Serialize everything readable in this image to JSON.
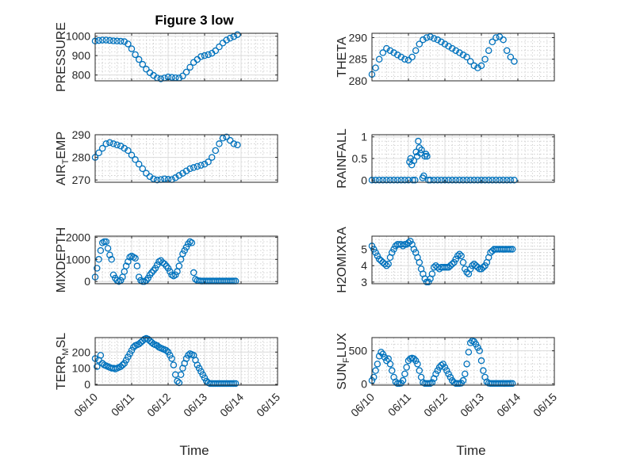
{
  "figure": {
    "title": "Figure 3 low",
    "xlabel": "Time",
    "x_tick_labels": [
      "06/10",
      "06/11",
      "06/12",
      "06/13",
      "06/14",
      "06/15"
    ],
    "marker_color": "#0072BD",
    "grid": "on (major + minor)"
  },
  "chart_data": [
    {
      "type": "scatter",
      "panel": "PRESSURE",
      "ylabel": "PRESSURE",
      "x_range": [
        0,
        5
      ],
      "ylim": [
        770,
        1015
      ],
      "yticks": [
        800,
        900,
        1000
      ],
      "x": [
        0,
        0.1,
        0.2,
        0.3,
        0.4,
        0.5,
        0.6,
        0.7,
        0.8,
        0.9,
        1,
        1.1,
        1.2,
        1.3,
        1.4,
        1.5,
        1.6,
        1.7,
        1.8,
        1.9,
        2,
        2.1,
        2.2,
        2.3,
        2.4,
        2.5,
        2.6,
        2.7,
        2.8,
        2.9,
        3,
        3.1,
        3.2,
        3.3,
        3.4,
        3.5,
        3.6,
        3.7,
        3.8,
        3.9
      ],
      "y": [
        975,
        978,
        980,
        980,
        978,
        976,
        975,
        974,
        972,
        960,
        935,
        905,
        880,
        855,
        830,
        812,
        798,
        785,
        780,
        785,
        790,
        788,
        786,
        785,
        795,
        815,
        840,
        865,
        880,
        895,
        900,
        905,
        912,
        925,
        945,
        965,
        980,
        990,
        998,
        1008
      ]
    },
    {
      "type": "scatter",
      "panel": "THETA",
      "ylabel": "THETA",
      "x_range": [
        0,
        5
      ],
      "ylim": [
        280,
        291
      ],
      "yticks": [
        280,
        285,
        290
      ],
      "x": [
        0,
        0.1,
        0.2,
        0.3,
        0.4,
        0.5,
        0.6,
        0.7,
        0.8,
        0.9,
        1,
        1.1,
        1.2,
        1.3,
        1.4,
        1.5,
        1.6,
        1.7,
        1.8,
        1.9,
        2,
        2.1,
        2.2,
        2.3,
        2.4,
        2.5,
        2.6,
        2.7,
        2.8,
        2.9,
        3,
        3.1,
        3.2,
        3.3,
        3.4,
        3.5,
        3.6,
        3.7,
        3.8,
        3.9
      ],
      "y": [
        281.5,
        283,
        285,
        286.5,
        287.5,
        287,
        286.5,
        286,
        285.5,
        285,
        284.8,
        285.5,
        287,
        288.5,
        289.5,
        290,
        290.2,
        289.8,
        289.5,
        289,
        288.5,
        288,
        287.5,
        287,
        286.5,
        286,
        285.5,
        284.5,
        283.5,
        283,
        283.5,
        285,
        287,
        289,
        290,
        290.2,
        289.5,
        287,
        285.5,
        284.5
      ]
    },
    {
      "type": "scatter",
      "panel": "AIR_TEMP",
      "ylabel": "AIR",
      "ylabel_subscript": "T",
      "ylabel_rest": "EMP",
      "x_range": [
        0,
        5
      ],
      "ylim": [
        269,
        290
      ],
      "yticks": [
        270,
        280,
        290
      ],
      "x": [
        0,
        0.1,
        0.2,
        0.3,
        0.4,
        0.5,
        0.6,
        0.7,
        0.8,
        0.9,
        1,
        1.1,
        1.2,
        1.3,
        1.4,
        1.5,
        1.6,
        1.7,
        1.8,
        1.9,
        2,
        2.1,
        2.2,
        2.3,
        2.4,
        2.5,
        2.6,
        2.7,
        2.8,
        2.9,
        3,
        3.1,
        3.2,
        3.3,
        3.4,
        3.5,
        3.6,
        3.7,
        3.8,
        3.9
      ],
      "y": [
        280,
        282,
        284,
        286,
        286.5,
        286,
        285.5,
        285,
        284,
        283,
        281,
        279,
        277,
        275,
        273,
        271.5,
        270.5,
        270,
        270.2,
        270.5,
        270.3,
        270.2,
        271,
        272,
        273,
        274,
        275,
        275.5,
        276,
        276.5,
        277,
        278,
        280,
        283,
        286,
        288.5,
        289,
        287.5,
        286,
        285.5
      ]
    },
    {
      "type": "scatter",
      "panel": "RAINFALL",
      "ylabel": "RAINFALL",
      "x_range": [
        0,
        5
      ],
      "ylim": [
        -0.05,
        1.05
      ],
      "yticks": [
        0,
        0.5,
        1
      ],
      "x": [
        0,
        0.1,
        0.2,
        0.3,
        0.4,
        0.5,
        0.6,
        0.7,
        0.8,
        0.9,
        1,
        1.03,
        1.06,
        1.09,
        1.12,
        1.15,
        1.18,
        1.21,
        1.24,
        1.27,
        1.3,
        1.33,
        1.36,
        1.39,
        1.42,
        1.45,
        1.48,
        1.51,
        1.55,
        1.6,
        1.7,
        1.8,
        1.9,
        2,
        2.1,
        2.2,
        2.3,
        2.4,
        2.5,
        2.6,
        2.7,
        2.8,
        2.9,
        3,
        3.1,
        3.2,
        3.3,
        3.4,
        3.5,
        3.6,
        3.7,
        3.8,
        3.9
      ],
      "y": [
        0,
        0,
        0,
        0,
        0,
        0,
        0,
        0,
        0,
        0,
        0,
        0.42,
        0.5,
        0.35,
        0,
        0.45,
        0,
        0.65,
        0.55,
        0.9,
        0.75,
        0.62,
        0.7,
        0.05,
        0.1,
        0.55,
        0.6,
        0.55,
        0,
        0,
        0,
        0,
        0,
        0,
        0,
        0,
        0,
        0,
        0,
        0,
        0,
        0,
        0,
        0,
        0,
        0,
        0,
        0,
        0,
        0,
        0,
        0,
        0
      ]
    },
    {
      "type": "scatter",
      "panel": "MIXDEPTH",
      "ylabel": "MIXDEPTH",
      "x_range": [
        0,
        5
      ],
      "ylim": [
        -100,
        2050
      ],
      "yticks": [
        0,
        1000,
        2000
      ],
      "x": [
        0,
        0.05,
        0.1,
        0.15,
        0.2,
        0.25,
        0.3,
        0.35,
        0.4,
        0.45,
        0.5,
        0.55,
        0.6,
        0.65,
        0.7,
        0.75,
        0.8,
        0.85,
        0.9,
        0.95,
        1,
        1.05,
        1.1,
        1.15,
        1.2,
        1.25,
        1.3,
        1.35,
        1.4,
        1.45,
        1.5,
        1.55,
        1.6,
        1.65,
        1.7,
        1.75,
        1.8,
        1.85,
        1.9,
        1.95,
        2,
        2.05,
        2.1,
        2.15,
        2.2,
        2.25,
        2.3,
        2.35,
        2.4,
        2.45,
        2.5,
        2.55,
        2.6,
        2.65,
        2.7,
        2.75,
        2.8,
        2.85,
        2.9,
        2.95,
        3,
        3.05,
        3.1,
        3.15,
        3.2,
        3.25,
        3.3,
        3.35,
        3.4,
        3.45,
        3.5,
        3.55,
        3.6,
        3.65,
        3.7,
        3.75,
        3.8,
        3.85
      ],
      "y": [
        200,
        600,
        1000,
        1400,
        1750,
        1800,
        1800,
        1500,
        1200,
        1000,
        300,
        150,
        50,
        0,
        50,
        200,
        450,
        700,
        900,
        1100,
        1150,
        1100,
        1050,
        700,
        200,
        50,
        0,
        0,
        50,
        150,
        300,
        400,
        500,
        600,
        750,
        900,
        950,
        850,
        800,
        700,
        600,
        450,
        300,
        250,
        300,
        450,
        700,
        1000,
        1250,
        1400,
        1550,
        1700,
        1800,
        1750,
        400,
        100,
        50,
        30,
        20,
        20,
        20,
        20,
        20,
        20,
        20,
        20,
        20,
        20,
        20,
        20,
        20,
        20,
        20,
        20,
        20,
        20,
        20,
        20
      ]
    },
    {
      "type": "scatter",
      "panel": "H2OMIXRA",
      "ylabel": "H2OMIXRA",
      "x_range": [
        0,
        5
      ],
      "ylim": [
        2.9,
        5.8
      ],
      "yticks": [
        3,
        4,
        5
      ],
      "x": [
        0,
        0.05,
        0.1,
        0.15,
        0.2,
        0.25,
        0.3,
        0.35,
        0.4,
        0.45,
        0.5,
        0.55,
        0.6,
        0.65,
        0.7,
        0.75,
        0.8,
        0.85,
        0.9,
        0.95,
        1,
        1.05,
        1.1,
        1.15,
        1.2,
        1.25,
        1.3,
        1.35,
        1.4,
        1.45,
        1.5,
        1.55,
        1.6,
        1.65,
        1.7,
        1.75,
        1.8,
        1.85,
        1.9,
        1.95,
        2,
        2.05,
        2.1,
        2.15,
        2.2,
        2.25,
        2.3,
        2.35,
        2.4,
        2.45,
        2.5,
        2.55,
        2.6,
        2.65,
        2.7,
        2.75,
        2.8,
        2.85,
        2.9,
        2.95,
        3,
        3.05,
        3.1,
        3.15,
        3.2,
        3.25,
        3.3,
        3.35,
        3.4,
        3.45,
        3.5,
        3.55,
        3.6,
        3.65,
        3.7,
        3.75,
        3.8,
        3.85
      ],
      "y": [
        5.2,
        5,
        4.8,
        4.6,
        4.4,
        4.3,
        4.2,
        4.1,
        4,
        4.1,
        4.5,
        4.8,
        5,
        5.2,
        5.3,
        5.3,
        5.3,
        5.2,
        5.3,
        5.3,
        5.4,
        5.5,
        5.3,
        5,
        4.8,
        4.5,
        4.2,
        3.8,
        3.5,
        3.2,
        3,
        3,
        3.2,
        3.5,
        3.9,
        4,
        3.9,
        3.8,
        3.9,
        3.9,
        3.9,
        3.9,
        3.9,
        4,
        4.1,
        4.2,
        4.4,
        4.6,
        4.7,
        4.6,
        4.2,
        3.8,
        3.6,
        3.5,
        3.8,
        4,
        4.1,
        4,
        3.9,
        3.8,
        3.8,
        3.9,
        4,
        4.2,
        4.5,
        4.8,
        4.9,
        5,
        5,
        5,
        5,
        5,
        5,
        5,
        5,
        5,
        5,
        5
      ]
    },
    {
      "type": "scatter",
      "panel": "TERR_MSL",
      "ylabel": "TERR",
      "ylabel_subscript": "M",
      "ylabel_rest": "SL",
      "x_range": [
        0,
        5
      ],
      "ylim": [
        -5,
        290
      ],
      "yticks": [
        0,
        100,
        200
      ],
      "x": [
        0,
        0.05,
        0.1,
        0.15,
        0.2,
        0.25,
        0.3,
        0.35,
        0.4,
        0.45,
        0.5,
        0.55,
        0.6,
        0.65,
        0.7,
        0.75,
        0.8,
        0.85,
        0.9,
        0.95,
        1,
        1.05,
        1.1,
        1.15,
        1.2,
        1.25,
        1.3,
        1.35,
        1.4,
        1.45,
        1.5,
        1.55,
        1.6,
        1.65,
        1.7,
        1.75,
        1.8,
        1.85,
        1.9,
        1.95,
        2,
        2.05,
        2.1,
        2.15,
        2.2,
        2.25,
        2.3,
        2.35,
        2.4,
        2.45,
        2.5,
        2.55,
        2.6,
        2.65,
        2.7,
        2.75,
        2.8,
        2.85,
        2.9,
        2.95,
        3,
        3.05,
        3.1,
        3.15,
        3.2,
        3.25,
        3.3,
        3.35,
        3.4,
        3.45,
        3.5,
        3.55,
        3.6,
        3.65,
        3.7,
        3.75,
        3.8,
        3.85
      ],
      "y": [
        160,
        110,
        150,
        180,
        130,
        120,
        115,
        110,
        105,
        100,
        100,
        95,
        100,
        105,
        110,
        120,
        130,
        150,
        170,
        190,
        210,
        230,
        240,
        245,
        250,
        260,
        270,
        280,
        285,
        280,
        270,
        260,
        250,
        245,
        240,
        230,
        225,
        220,
        215,
        210,
        200,
        180,
        160,
        120,
        60,
        20,
        10,
        60,
        100,
        130,
        160,
        180,
        190,
        185,
        180,
        150,
        120,
        100,
        80,
        60,
        40,
        20,
        10,
        5,
        5,
        5,
        5,
        5,
        5,
        5,
        5,
        5,
        5,
        5,
        5,
        5,
        5,
        5
      ]
    },
    {
      "type": "scatter",
      "panel": "SUN_FLUX",
      "ylabel": "SUN",
      "ylabel_subscript": "F",
      "ylabel_rest": "LUX",
      "x_range": [
        0,
        5
      ],
      "ylim": [
        -20,
        700
      ],
      "yticks": [
        0,
        500
      ],
      "x": [
        0,
        0.05,
        0.1,
        0.15,
        0.2,
        0.25,
        0.3,
        0.35,
        0.4,
        0.45,
        0.5,
        0.55,
        0.6,
        0.65,
        0.7,
        0.75,
        0.8,
        0.85,
        0.9,
        0.95,
        1,
        1.05,
        1.1,
        1.15,
        1.2,
        1.25,
        1.3,
        1.35,
        1.4,
        1.45,
        1.5,
        1.55,
        1.6,
        1.65,
        1.7,
        1.75,
        1.8,
        1.85,
        1.9,
        1.95,
        2,
        2.05,
        2.1,
        2.15,
        2.2,
        2.25,
        2.3,
        2.35,
        2.4,
        2.45,
        2.5,
        2.55,
        2.6,
        2.65,
        2.7,
        2.75,
        2.8,
        2.85,
        2.9,
        2.95,
        3,
        3.05,
        3.1,
        3.15,
        3.2,
        3.25,
        3.3,
        3.35,
        3.4,
        3.45,
        3.5,
        3.55,
        3.6,
        3.65,
        3.7,
        3.75,
        3.8,
        3.85
      ],
      "y": [
        50,
        100,
        200,
        300,
        420,
        480,
        450,
        400,
        350,
        380,
        300,
        200,
        100,
        30,
        5,
        5,
        10,
        50,
        150,
        250,
        350,
        380,
        390,
        380,
        350,
        300,
        200,
        100,
        20,
        5,
        5,
        5,
        5,
        20,
        80,
        150,
        200,
        250,
        280,
        300,
        250,
        200,
        150,
        100,
        50,
        20,
        5,
        5,
        5,
        10,
        50,
        150,
        300,
        480,
        620,
        650,
        640,
        600,
        550,
        500,
        350,
        200,
        100,
        30,
        10,
        5,
        5,
        5,
        5,
        5,
        5,
        5,
        5,
        5,
        5,
        5,
        5,
        5
      ]
    }
  ]
}
